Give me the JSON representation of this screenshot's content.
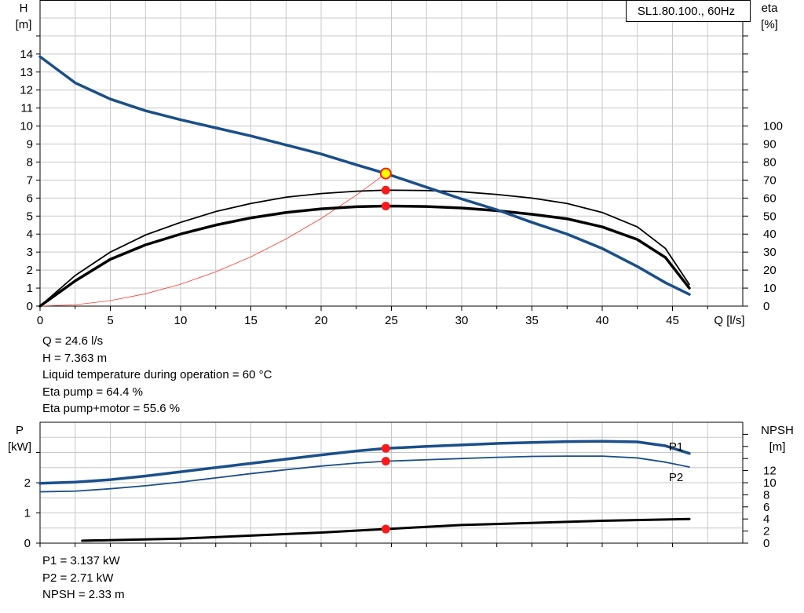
{
  "chart_data": [
    {
      "type": "line",
      "title": "SL1.80.100., 60Hz",
      "xlabel": "Q [l/s]",
      "ylabel": [
        "H",
        "[m]"
      ],
      "y2label": [
        "eta",
        "[%]"
      ],
      "xlim": [
        0,
        50
      ],
      "ylim": [
        0,
        17
      ],
      "y2lim": [
        0,
        170
      ],
      "xticks": [
        0,
        5,
        10,
        15,
        20,
        25,
        30,
        35,
        40,
        45
      ],
      "yticks": [
        0,
        1,
        2,
        3,
        4,
        5,
        6,
        7,
        8,
        9,
        10,
        11,
        12,
        13,
        14
      ],
      "y2ticks": [
        0,
        10,
        20,
        30,
        40,
        50,
        60,
        70,
        80,
        90,
        100
      ],
      "grid": true,
      "series": [
        {
          "name": "H",
          "axis": "left",
          "color": "#1a4f8a",
          "width": 3.5,
          "x": [
            0,
            2.5,
            5,
            7.5,
            10,
            12.5,
            15,
            17.5,
            20,
            22.5,
            24.6,
            27.5,
            30,
            32.5,
            35,
            37.5,
            40,
            42.5,
            44.5,
            46.2
          ],
          "y": [
            13.85,
            12.4,
            11.5,
            10.85,
            10.35,
            9.9,
            9.45,
            8.95,
            8.45,
            7.85,
            7.363,
            6.6,
            5.95,
            5.35,
            4.65,
            4.0,
            3.2,
            2.2,
            1.3,
            0.65
          ]
        },
        {
          "name": "Eta pump",
          "axis": "right",
          "color": "#000000",
          "width": 1.8,
          "x": [
            0,
            2.5,
            5,
            7.5,
            10,
            12.5,
            15,
            17.5,
            20,
            22.5,
            24.6,
            27.5,
            30,
            32.5,
            35,
            37.5,
            40,
            42.5,
            44.5,
            46.2
          ],
          "y": [
            0,
            17,
            30,
            39.5,
            46.5,
            52.5,
            57,
            60.5,
            62.5,
            63.8,
            64.4,
            64.2,
            63.5,
            62,
            60,
            57,
            52,
            44,
            32,
            12
          ]
        },
        {
          "name": "Eta pump+motor",
          "axis": "right",
          "color": "#000000",
          "width": 3.5,
          "x": [
            0,
            2.5,
            5,
            7.5,
            10,
            12.5,
            15,
            17.5,
            20,
            22.5,
            24.6,
            27.5,
            30,
            32.5,
            35,
            37.5,
            40,
            42.5,
            44.5,
            46.2
          ],
          "y": [
            0,
            14,
            26,
            34,
            40,
            45,
            49,
            52,
            54,
            55.2,
            55.6,
            55.3,
            54.5,
            53,
            51,
            48.5,
            44,
            37,
            27,
            10
          ]
        },
        {
          "name": "System curve",
          "axis": "left",
          "color": "#ff3b30",
          "width": 0.8,
          "x": [
            0,
            2.5,
            5,
            7.5,
            10,
            12.5,
            15,
            17.5,
            20,
            22.5,
            24.6
          ],
          "y": [
            0,
            0.076,
            0.304,
            0.684,
            1.217,
            1.901,
            2.737,
            3.726,
            4.866,
            6.159,
            7.363
          ]
        }
      ],
      "operating_point": {
        "q": 24.6,
        "h": 7.363,
        "eta_pump": 64.4,
        "eta_total": 55.6
      }
    },
    {
      "type": "line",
      "xlabel": "",
      "ylabel": [
        "P",
        "[kW]"
      ],
      "y2label": [
        "NPSH",
        "[m]"
      ],
      "xlim": [
        0,
        50
      ],
      "ylim": [
        0,
        4
      ],
      "y2lim": [
        0,
        20
      ],
      "yticks": [
        0,
        1,
        2
      ],
      "y2ticks": [
        0,
        2,
        4,
        6,
        8,
        10,
        12
      ],
      "grid": true,
      "series": [
        {
          "name": "P1",
          "axis": "left",
          "color": "#1a4f8a",
          "width": 3.5,
          "x": [
            0,
            2.5,
            5,
            7.5,
            10,
            12.5,
            15,
            17.5,
            20,
            22.5,
            24.6,
            27.5,
            30,
            32.5,
            35,
            37.5,
            40,
            42.5,
            44.5,
            46.2
          ],
          "y": [
            1.98,
            2.02,
            2.1,
            2.22,
            2.36,
            2.5,
            2.64,
            2.78,
            2.92,
            3.05,
            3.137,
            3.2,
            3.25,
            3.3,
            3.33,
            3.36,
            3.37,
            3.35,
            3.22,
            2.97
          ]
        },
        {
          "name": "P2",
          "axis": "left",
          "color": "#1a4f8a",
          "width": 1.8,
          "x": [
            0,
            2.5,
            5,
            7.5,
            10,
            12.5,
            15,
            17.5,
            20,
            22.5,
            24.6,
            27.5,
            30,
            32.5,
            35,
            37.5,
            40,
            42.5,
            44.5,
            46.2
          ],
          "y": [
            1.7,
            1.72,
            1.8,
            1.9,
            2.02,
            2.16,
            2.3,
            2.43,
            2.55,
            2.65,
            2.71,
            2.76,
            2.8,
            2.84,
            2.87,
            2.88,
            2.88,
            2.82,
            2.68,
            2.52
          ]
        },
        {
          "name": "NPSH",
          "axis": "right",
          "color": "#000000",
          "width": 3,
          "x": [
            3,
            10,
            20,
            24.6,
            30,
            40,
            46.2
          ],
          "y": [
            0.4,
            0.75,
            1.75,
            2.33,
            3.0,
            3.7,
            4.0
          ]
        }
      ],
      "series_labels": [
        "P1",
        "P2"
      ]
    }
  ],
  "operating_info": [
    "Q = 24.6 l/s",
    "H = 7.363 m",
    "Liquid temperature during operation = 60 °C",
    "Eta pump = 64.4 %",
    "Eta pump+motor = 55.6 %"
  ],
  "power_info": [
    "P1 = 3.137 kW",
    "P2 = 2.71 kW",
    "NPSH = 2.33 m"
  ],
  "colors": {
    "blue": "#1a4f8a",
    "marker": "#ff1a1a",
    "marker_highlight": "#ffff00",
    "grid": "#c8c8c8"
  }
}
